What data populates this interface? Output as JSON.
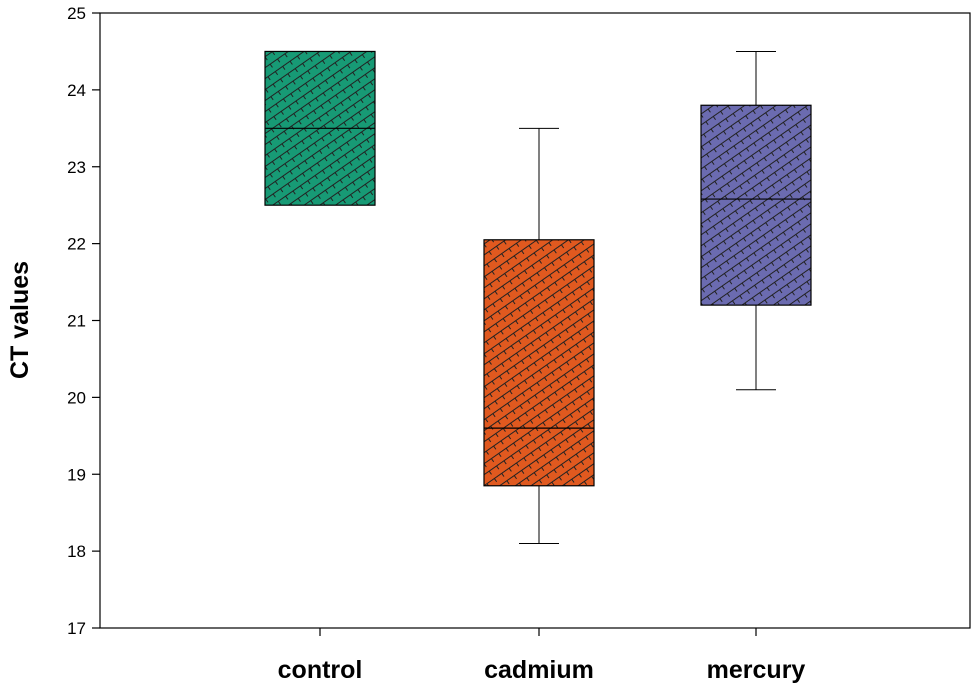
{
  "chart_data": {
    "type": "box",
    "title": "",
    "xlabel": "",
    "ylabel": "CT values",
    "ylim": [
      17,
      25
    ],
    "yticks": [
      17,
      18,
      19,
      20,
      21,
      22,
      23,
      24,
      25
    ],
    "categories": [
      "control",
      "cadmium",
      "mercury"
    ],
    "series": [
      {
        "name": "control",
        "q1": 22.5,
        "median": 23.5,
        "q3": 24.5,
        "whisker_low": 22.5,
        "whisker_high": 24.5,
        "color": "#179a75"
      },
      {
        "name": "cadmium",
        "q1": 18.85,
        "median": 19.6,
        "q3": 22.05,
        "whisker_low": 18.1,
        "whisker_high": 23.5,
        "color": "#e0591f"
      },
      {
        "name": "mercury",
        "q1": 21.2,
        "median": 22.58,
        "q3": 23.8,
        "whisker_low": 20.1,
        "whisker_high": 24.5,
        "color": "#6b6bb0"
      }
    ],
    "grid": false
  }
}
